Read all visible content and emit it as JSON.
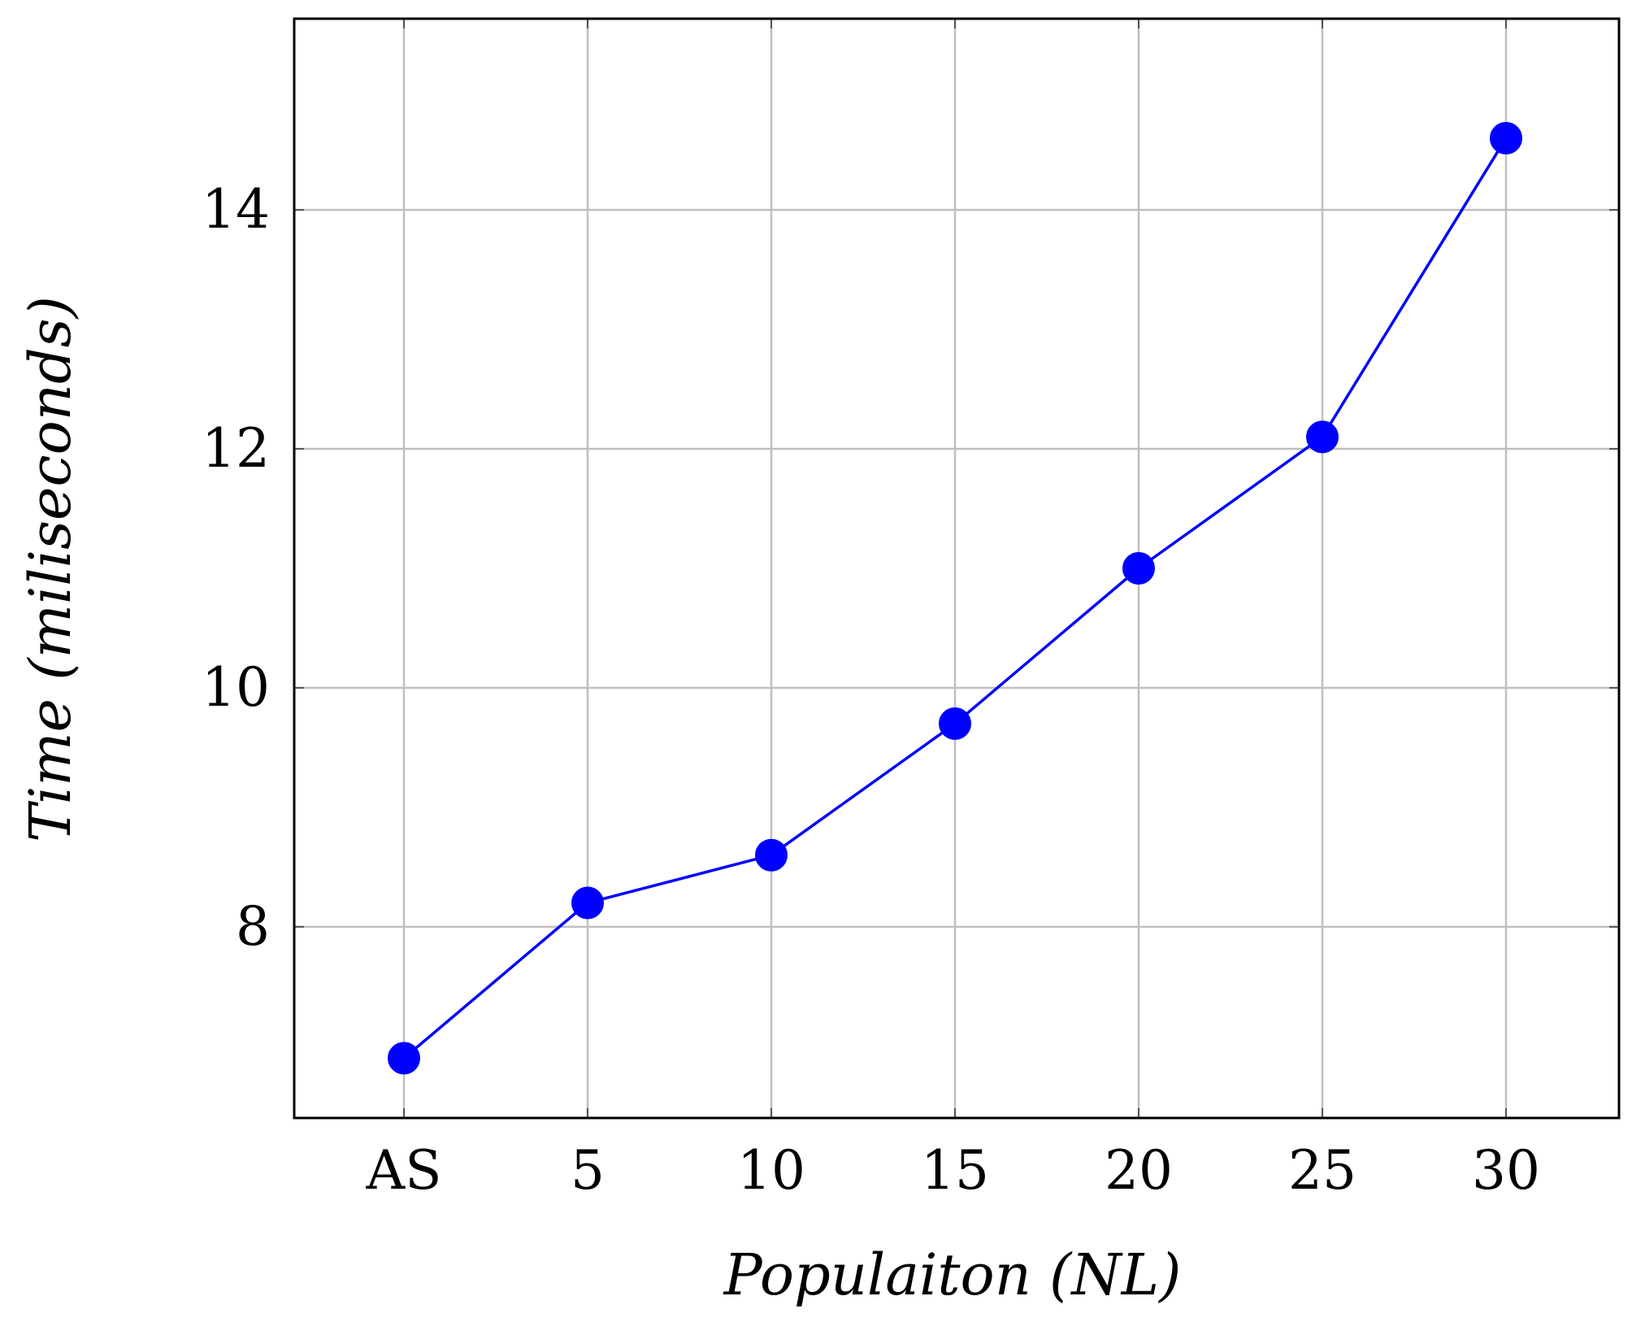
{
  "chart_data": {
    "type": "line",
    "title": "",
    "xlabel": "Populaiton (NL)",
    "ylabel": "Time (miliseconds)",
    "categories": [
      "AS",
      "5",
      "10",
      "15",
      "20",
      "25",
      "30"
    ],
    "series": [
      {
        "values": [
          6.9,
          8.2,
          8.6,
          9.7,
          11.0,
          12.1,
          14.6
        ],
        "color": "#0000ff",
        "marker": "circle"
      }
    ],
    "yticks": [
      8,
      10,
      12,
      14
    ],
    "ylim": [
      6.4,
      15.6
    ],
    "grid": true,
    "legend": "none",
    "gridColor": "#bfbfbf",
    "axisColor": "#000000"
  }
}
